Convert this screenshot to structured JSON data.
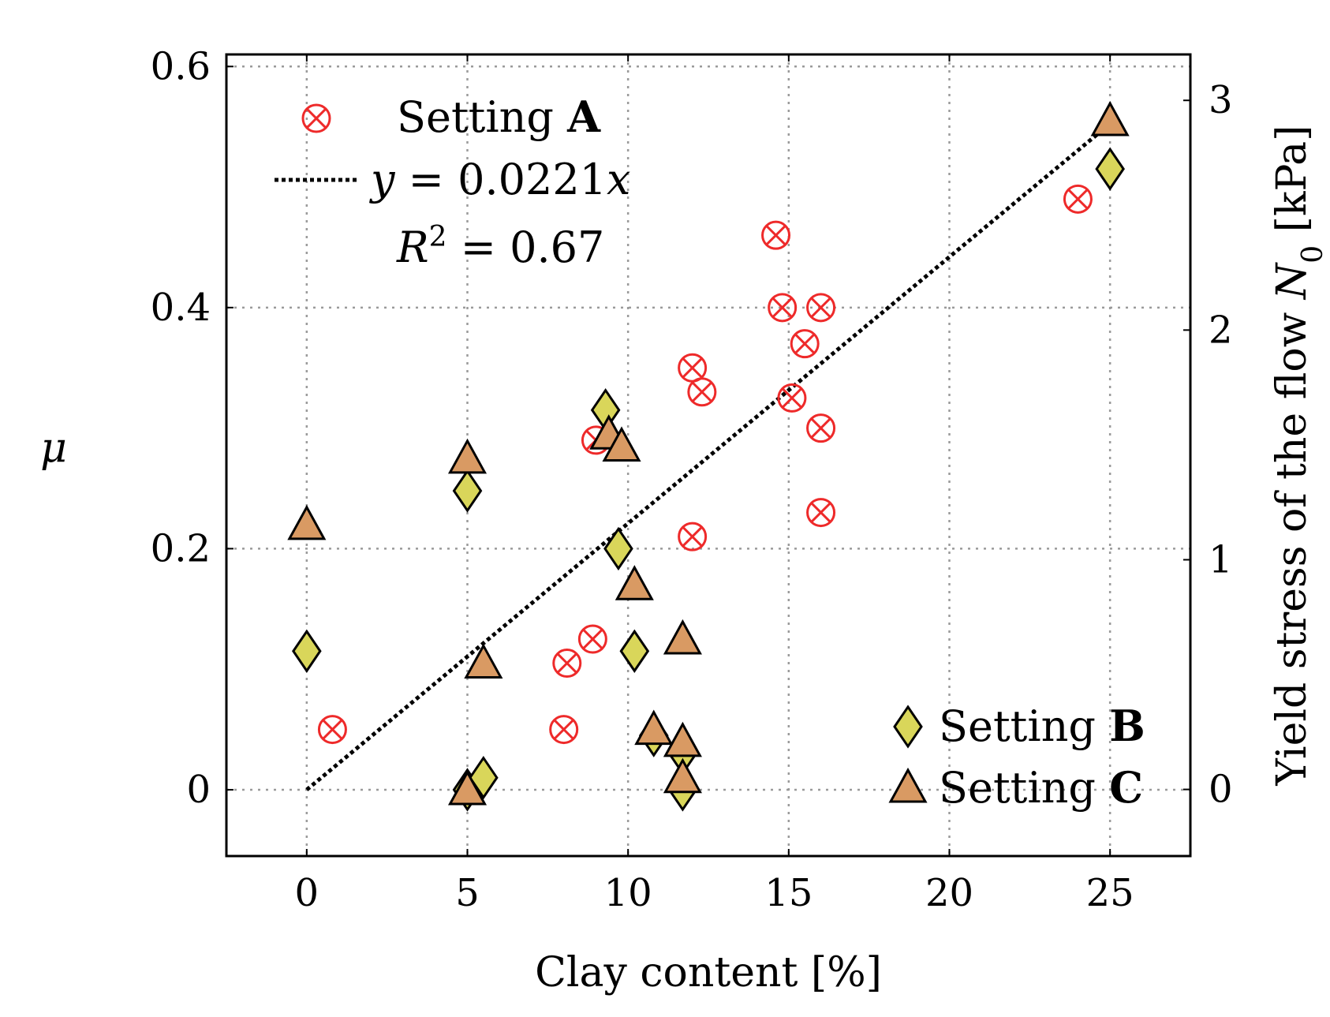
{
  "chart_data": {
    "type": "scatter",
    "title": "",
    "xlabel": "Clay content [%]",
    "ylabel": "μ",
    "y2label_prefix": "Yield stress of the flow ",
    "y2label_var": "N",
    "y2label_sub": "0",
    "y2label_unit": " [kPa]",
    "xlim": [
      -2.5,
      27.5
    ],
    "ylim": [
      -0.055,
      0.61
    ],
    "y2lim": [
      -0.29,
      3.2
    ],
    "xticks": [
      0,
      5,
      10,
      15,
      20,
      25
    ],
    "xtick_labels": [
      "0",
      "5",
      "10",
      "15",
      "20",
      "25"
    ],
    "yticks": [
      0,
      0.2,
      0.4,
      0.6
    ],
    "ytick_labels": [
      "0",
      "0.2",
      "0.4",
      "0.6"
    ],
    "y2ticks": [
      0,
      1,
      2,
      3
    ],
    "y2tick_labels": [
      "0",
      "1",
      "2",
      "3"
    ],
    "grid": true,
    "series": [
      {
        "name": "Setting A",
        "legend_prefix": "Setting ",
        "legend_bold": "A",
        "marker": "circle-x",
        "color": "#ee2a2a",
        "points": [
          [
            0.8,
            0.05
          ],
          [
            8.0,
            0.05
          ],
          [
            8.1,
            0.105
          ],
          [
            8.9,
            0.125
          ],
          [
            9.0,
            0.29
          ],
          [
            12.0,
            0.21
          ],
          [
            12.0,
            0.35
          ],
          [
            12.3,
            0.33
          ],
          [
            14.6,
            0.46
          ],
          [
            14.8,
            0.4
          ],
          [
            15.1,
            0.325
          ],
          [
            15.5,
            0.37
          ],
          [
            16.0,
            0.4
          ],
          [
            16.0,
            0.3
          ],
          [
            16.0,
            0.23
          ],
          [
            24.0,
            0.49
          ]
        ]
      },
      {
        "name": "Setting B",
        "legend_prefix": "Setting ",
        "legend_bold": "B",
        "marker": "diamond",
        "color": "#d9d65a",
        "points": [
          [
            0.0,
            0.115
          ],
          [
            5.0,
            0.0
          ],
          [
            5.0,
            0.248
          ],
          [
            5.5,
            0.01
          ],
          [
            9.3,
            0.315
          ],
          [
            9.7,
            0.2
          ],
          [
            10.2,
            0.115
          ],
          [
            10.8,
            0.045
          ],
          [
            11.7,
            0.03
          ],
          [
            11.7,
            0.0
          ],
          [
            25.0,
            0.515
          ]
        ]
      },
      {
        "name": "Setting C",
        "legend_prefix": "Setting ",
        "legend_bold": "C",
        "marker": "triangle",
        "color": "#d99a63",
        "points": [
          [
            0.0,
            0.22
          ],
          [
            5.0,
            0.0
          ],
          [
            5.0,
            0.275
          ],
          [
            5.5,
            0.105
          ],
          [
            9.4,
            0.295
          ],
          [
            9.8,
            0.285
          ],
          [
            10.2,
            0.17
          ],
          [
            10.8,
            0.05
          ],
          [
            11.7,
            0.125
          ],
          [
            11.7,
            0.04
          ],
          [
            11.7,
            0.01
          ],
          [
            25.0,
            0.555
          ]
        ]
      }
    ],
    "fit": {
      "name": "y = 0.0221x",
      "slope": 0.0221,
      "x_range": [
        0,
        25
      ],
      "label_y": "y",
      "label_eq": " = 0.0221",
      "label_x": "x",
      "r2_R": "R",
      "r2_exp": "2",
      "r2_eq": " = 0.67"
    },
    "legend_positions": [
      "top-left",
      "bottom-right"
    ]
  }
}
